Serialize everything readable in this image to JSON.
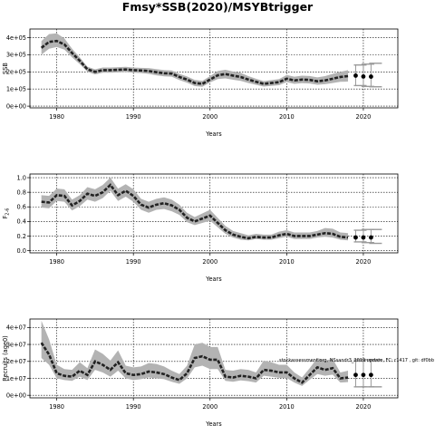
{
  "title": "Fmsy*SSB(2020)/MSYBtrigger",
  "chart_data": [
    {
      "type": "line",
      "name": "ssb-panel",
      "xlabel": "Years",
      "ylabel": "SSB",
      "xlim": [
        1976.5,
        2024.5
      ],
      "ylim": [
        -10000,
        450000
      ],
      "x_ticks": [
        1980,
        1990,
        2000,
        2010,
        2020
      ],
      "x_tick_labels": [
        "1980",
        "1990",
        "2000",
        "2010",
        "2020"
      ],
      "y_ticks": [
        0,
        100000,
        200000,
        300000,
        400000
      ],
      "y_tick_labels": [
        "0e+00",
        "1e+05",
        "2e+05",
        "3e+05",
        "4e+05"
      ],
      "grid": true,
      "series": [
        {
          "x": [
            1978,
            1979,
            1980,
            1981,
            1982,
            1983,
            1984,
            1985,
            1986,
            1987,
            1988,
            1989,
            1990,
            1991,
            1992,
            1993,
            1994,
            1995,
            1996,
            1997,
            1998,
            1999,
            2000,
            2001,
            2002,
            2003,
            2004,
            2005,
            2006,
            2007,
            2008,
            2009,
            2010,
            2011,
            2012,
            2013,
            2014,
            2015,
            2016,
            2017,
            2018
          ],
          "y": [
            340000,
            375000,
            380000,
            360000,
            310000,
            265000,
            215000,
            200000,
            210000,
            210000,
            212000,
            214000,
            210000,
            208000,
            205000,
            198000,
            192000,
            190000,
            170000,
            155000,
            135000,
            130000,
            155000,
            180000,
            187000,
            178000,
            170000,
            155000,
            142000,
            130000,
            135000,
            140000,
            160000,
            150000,
            155000,
            153000,
            145000,
            150000,
            160000,
            170000,
            175000
          ],
          "lower": [
            300000,
            335000,
            345000,
            330000,
            285000,
            245000,
            200000,
            185000,
            195000,
            195000,
            197000,
            199000,
            195000,
            193000,
            188000,
            180000,
            174000,
            172000,
            152000,
            137000,
            117000,
            113000,
            138000,
            158000,
            162000,
            154000,
            147000,
            135000,
            124000,
            114000,
            118000,
            122000,
            140000,
            130000,
            134000,
            132000,
            125000,
            128000,
            135000,
            142000,
            143000
          ],
          "upper": [
            380000,
            420000,
            425000,
            395000,
            335000,
            285000,
            230000,
            215000,
            225000,
            225000,
            227000,
            229000,
            225000,
            223000,
            222000,
            216000,
            210000,
            208000,
            188000,
            173000,
            153000,
            147000,
            175000,
            205000,
            212000,
            202000,
            194000,
            175000,
            160000,
            146000,
            152000,
            158000,
            182000,
            172000,
            178000,
            176000,
            168000,
            175000,
            188000,
            200000,
            210000
          ]
        }
      ],
      "projection": {
        "x": [
          2019,
          2020,
          2021
        ],
        "y": [
          178000,
          173000,
          172000
        ],
        "lower": [
          120000,
          115000,
          113000
        ],
        "upper": [
          240000,
          245000,
          250000
        ]
      }
    },
    {
      "type": "line",
      "name": "f-panel",
      "xlabel": "Years",
      "ylabel": "F2-6",
      "xlim": [
        1976.5,
        2024.5
      ],
      "ylim": [
        -0.03,
        1.05
      ],
      "x_ticks": [
        1980,
        1990,
        2000,
        2010,
        2020
      ],
      "x_tick_labels": [
        "1980",
        "1990",
        "2000",
        "2010",
        "2020"
      ],
      "y_ticks": [
        0,
        0.2,
        0.4,
        0.6,
        0.8,
        1.0
      ],
      "y_tick_labels": [
        "0.0",
        "0.2",
        "0.4",
        "0.6",
        "0.8",
        "1.0"
      ],
      "grid": true,
      "series": [
        {
          "x": [
            1978,
            1979,
            1980,
            1981,
            1982,
            1983,
            1984,
            1985,
            1986,
            1987,
            1988,
            1989,
            1990,
            1991,
            1992,
            1993,
            1994,
            1995,
            1996,
            1997,
            1998,
            1999,
            2000,
            2001,
            2002,
            2003,
            2004,
            2005,
            2006,
            2007,
            2008,
            2009,
            2010,
            2011,
            2012,
            2013,
            2014,
            2015,
            2016,
            2017,
            2018
          ],
          "y": [
            0.67,
            0.66,
            0.76,
            0.75,
            0.62,
            0.68,
            0.78,
            0.75,
            0.8,
            0.9,
            0.76,
            0.82,
            0.75,
            0.63,
            0.59,
            0.63,
            0.65,
            0.62,
            0.56,
            0.45,
            0.4,
            0.44,
            0.48,
            0.38,
            0.28,
            0.22,
            0.19,
            0.17,
            0.19,
            0.18,
            0.18,
            0.21,
            0.23,
            0.2,
            0.2,
            0.2,
            0.22,
            0.24,
            0.23,
            0.19,
            0.18
          ],
          "lower": [
            0.59,
            0.58,
            0.68,
            0.67,
            0.55,
            0.61,
            0.7,
            0.67,
            0.72,
            0.82,
            0.68,
            0.74,
            0.67,
            0.56,
            0.52,
            0.56,
            0.57,
            0.54,
            0.49,
            0.39,
            0.35,
            0.38,
            0.41,
            0.32,
            0.23,
            0.18,
            0.15,
            0.14,
            0.16,
            0.15,
            0.15,
            0.17,
            0.19,
            0.16,
            0.16,
            0.16,
            0.18,
            0.19,
            0.18,
            0.15,
            0.14
          ],
          "upper": [
            0.76,
            0.75,
            0.85,
            0.84,
            0.7,
            0.76,
            0.87,
            0.84,
            0.9,
            1.0,
            0.85,
            0.91,
            0.84,
            0.71,
            0.67,
            0.71,
            0.73,
            0.7,
            0.63,
            0.52,
            0.46,
            0.51,
            0.56,
            0.45,
            0.34,
            0.27,
            0.24,
            0.21,
            0.23,
            0.22,
            0.22,
            0.26,
            0.28,
            0.25,
            0.25,
            0.25,
            0.27,
            0.31,
            0.3,
            0.25,
            0.24
          ]
        }
      ],
      "projection": {
        "x": [
          2019,
          2020,
          2021
        ],
        "y": [
          0.18,
          0.18,
          0.18
        ],
        "lower": [
          0.12,
          0.11,
          0.1
        ],
        "upper": [
          0.28,
          0.29,
          0.29
        ]
      }
    },
    {
      "type": "line",
      "name": "recruits-panel",
      "xlabel": "Years",
      "ylabel": "Recruits (age0)",
      "xlim": [
        1976.5,
        2024.5
      ],
      "ylim": [
        -1500000,
        45000000
      ],
      "x_ticks": [
        1980,
        1990,
        2000,
        2010,
        2020
      ],
      "x_tick_labels": [
        "1980",
        "1990",
        "2000",
        "2010",
        "2020"
      ],
      "y_ticks": [
        0,
        10000000,
        20000000,
        30000000,
        40000000
      ],
      "y_tick_labels": [
        "0e+00",
        "1e+07",
        "2e+07",
        "3e+07",
        "4e+07"
      ],
      "grid": true,
      "annotation": "stockassessment.org, NSsandr3_2019 update, FC: r1417 , git: df0bb",
      "series": [
        {
          "x": [
            1978,
            1979,
            1980,
            1981,
            1982,
            1983,
            1984,
            1985,
            1986,
            1987,
            1988,
            1989,
            1990,
            1991,
            1992,
            1993,
            1994,
            1995,
            1996,
            1997,
            1998,
            1999,
            2000,
            2001,
            2002,
            2003,
            2004,
            2005,
            2006,
            2007,
            2008,
            2009,
            2010,
            2011,
            2012,
            2013,
            2014,
            2015,
            2016,
            2017,
            2018
          ],
          "y": [
            31000000,
            24000000,
            13000000,
            11500000,
            11000000,
            14500000,
            12000000,
            20000000,
            18000000,
            15000000,
            19500000,
            13000000,
            12000000,
            12500000,
            14000000,
            13500000,
            12500000,
            10500000,
            9000000,
            13000000,
            22000000,
            23000000,
            21000000,
            21000000,
            11000000,
            10500000,
            11500000,
            11000000,
            10000000,
            15000000,
            14500000,
            13500000,
            13500000,
            10000000,
            7500000,
            12000000,
            16500000,
            15000000,
            16000000,
            10000000,
            10500000
          ],
          "lower": [
            22000000,
            18000000,
            10000000,
            9000000,
            8500000,
            11000000,
            9000000,
            15000000,
            13500000,
            11000000,
            14500000,
            10000000,
            9000000,
            9500000,
            10500000,
            10000000,
            9500000,
            8000000,
            6800000,
            10000000,
            16500000,
            17500000,
            15500000,
            15500000,
            8500000,
            8000000,
            8800000,
            8300000,
            7500000,
            11500000,
            11000000,
            10300000,
            10200000,
            7500000,
            5500000,
            9200000,
            12500000,
            11500000,
            12200000,
            7500000,
            7800000
          ],
          "upper": [
            44000000,
            33000000,
            18000000,
            15500000,
            15000000,
            19500000,
            16000000,
            27000000,
            24500000,
            20500000,
            26500000,
            17500000,
            16500000,
            17000000,
            19000000,
            18500000,
            17000000,
            14500000,
            12500000,
            17500000,
            30000000,
            31000000,
            28500000,
            28500000,
            15000000,
            14500000,
            15500000,
            15000000,
            13500000,
            20500000,
            19500000,
            18000000,
            18000000,
            13500000,
            10500000,
            16000000,
            22000000,
            20500000,
            21500000,
            13500000,
            14500000
          ]
        }
      ],
      "projection": {
        "x": [
          2019,
          2020,
          2021
        ],
        "y": [
          12000000,
          12000000,
          12000000
        ],
        "lower": [
          5000000,
          5000000,
          5000000
        ],
        "upper": [
          21000000,
          21000000,
          21000000
        ]
      }
    }
  ]
}
